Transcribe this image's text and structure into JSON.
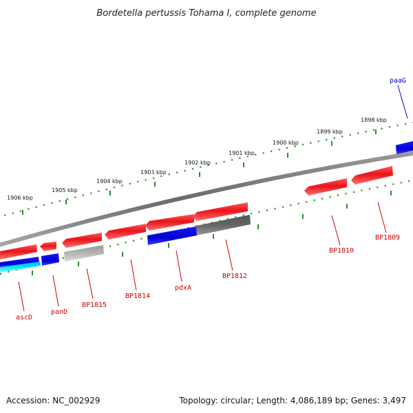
{
  "title": "Bordetella pertussis Tohama I, complete genome",
  "accession": "Accession: NC_002929",
  "summary": "Topology: circular; Length: 4,086,189 bp; Genes: 3,497",
  "colors": {
    "backbone": "#7a7a7a",
    "tick": "#2e8b2e",
    "gene_red": "#e8141a",
    "gene_blue": "#1010e0",
    "gene_gray": "#666666",
    "gene_light_gray": "#b0b0b0",
    "gene_cyan": "#00e5ff",
    "label_red": "#cc0000",
    "label_blue": "#0000cc"
  },
  "ruler_labels": [
    "1906 kbp",
    "1905 kbp",
    "1904 kbp",
    "1903 kbp",
    "1902 kbp",
    "1901 kbp",
    "1900 kbp",
    "1899 kbp",
    "1898 kbp"
  ],
  "gene_labels": [
    {
      "text": "ascD",
      "color": "red"
    },
    {
      "text": "panD",
      "color": "red"
    },
    {
      "text": "BP1815",
      "color": "red"
    },
    {
      "text": "BP1814",
      "color": "red"
    },
    {
      "text": "pdxA",
      "color": "red"
    },
    {
      "text": "BP1812",
      "color": "red"
    },
    {
      "text": "BP1810",
      "color": "red"
    },
    {
      "text": "BP1809",
      "color": "red"
    },
    {
      "text": "paaG",
      "color": "blue"
    }
  ]
}
